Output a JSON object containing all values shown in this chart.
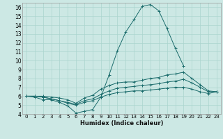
{
  "xlabel": "Humidex (Indice chaleur)",
  "background_color": "#cce8e4",
  "grid_color": "#aad4ce",
  "line_color": "#1a6b6b",
  "xlim": [
    -0.5,
    23.5
  ],
  "ylim": [
    4,
    16.5
  ],
  "yticks": [
    4,
    5,
    6,
    7,
    8,
    9,
    10,
    11,
    12,
    13,
    14,
    15,
    16
  ],
  "xticks": [
    0,
    1,
    2,
    3,
    4,
    5,
    6,
    7,
    8,
    9,
    10,
    11,
    12,
    13,
    14,
    15,
    16,
    17,
    18,
    19,
    20,
    21,
    22,
    23
  ],
  "series": [
    [
      6.0,
      5.9,
      5.6,
      5.6,
      5.3,
      4.9,
      4.1,
      4.3,
      4.5,
      5.9,
      8.4,
      11.1,
      13.2,
      14.6,
      16.1,
      16.3,
      15.6,
      13.6,
      11.4,
      9.4,
      null,
      null,
      null,
      null
    ],
    [
      6.0,
      6.0,
      6.0,
      5.9,
      5.8,
      5.6,
      5.2,
      5.8,
      6.1,
      6.8,
      7.2,
      7.5,
      7.6,
      7.6,
      7.8,
      8.0,
      8.1,
      8.4,
      8.5,
      8.7,
      8.0,
      7.3,
      6.6,
      6.5
    ],
    [
      6.0,
      6.0,
      5.9,
      5.7,
      5.5,
      5.3,
      5.1,
      5.5,
      5.7,
      6.2,
      6.6,
      6.9,
      7.0,
      7.1,
      7.2,
      7.3,
      7.4,
      7.6,
      7.7,
      7.9,
      7.5,
      7.0,
      6.5,
      6.5
    ],
    [
      6.0,
      6.0,
      5.9,
      5.7,
      5.5,
      5.2,
      5.0,
      5.3,
      5.5,
      5.9,
      6.2,
      6.4,
      6.5,
      6.6,
      6.6,
      6.7,
      6.8,
      6.9,
      7.0,
      7.0,
      6.8,
      6.5,
      6.3,
      6.5
    ]
  ],
  "xlabel_fontsize": 6,
  "tick_fontsize": 5,
  "ytick_fontsize": 5.5
}
